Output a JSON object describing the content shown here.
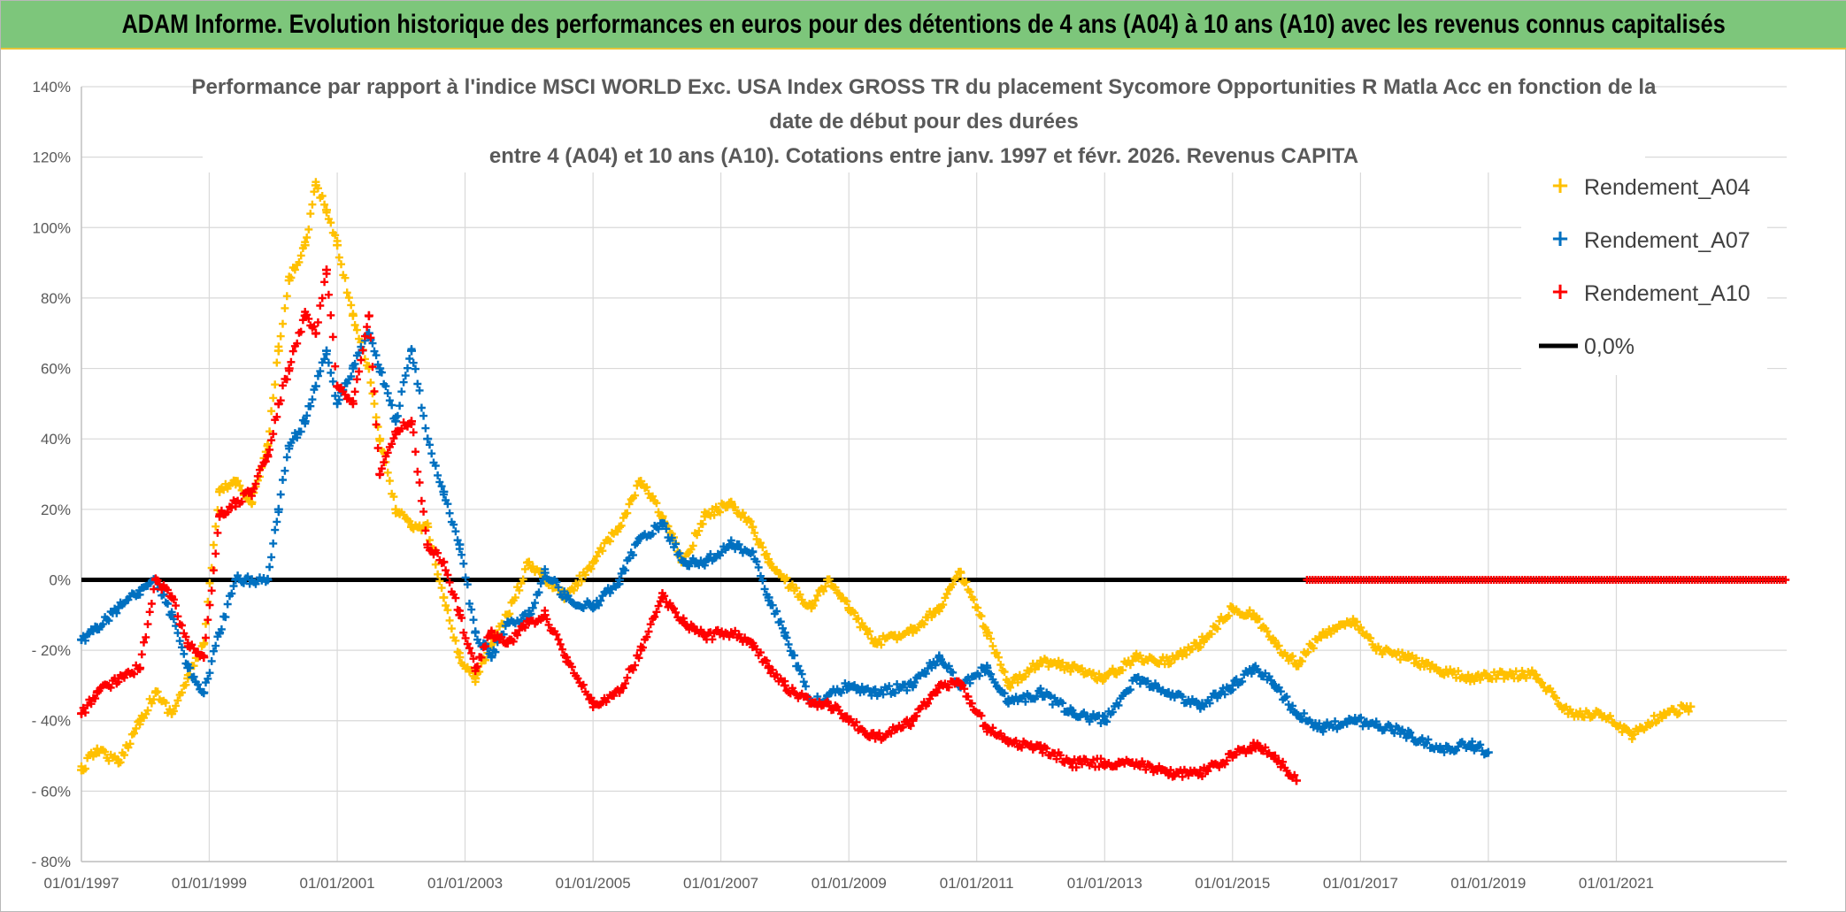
{
  "banner": {
    "title": "ADAM Informe. Evolution historique des performances en euros pour des détentions de 4 ans (A04) à 10 ans (A10) avec les revenus connus capitalisés"
  },
  "chart_data": {
    "type": "scatter",
    "title_lines": [
      "Performance par rapport à l'indice MSCI WORLD Exc. USA Index GROSS TR  du placement Sycomore Opportunities R Matla Acc en fonction de la",
      "date de début pour des durées",
      "entre 4 (A04) et 10 ans (A10). Cotations entre janv. 1997 et févr. 2026. Revenus CAPITA"
    ],
    "x_axis": {
      "type": "date",
      "range": [
        "1997-01-01",
        "2023-09-01"
      ],
      "tick_labels": [
        "01/01/1997",
        "01/01/1999",
        "01/01/2001",
        "01/01/2003",
        "01/01/2005",
        "01/01/2007",
        "01/01/2009",
        "01/01/2011",
        "01/01/2013",
        "01/01/2015",
        "01/01/2017",
        "01/01/2019",
        "01/01/2021"
      ]
    },
    "y_axis": {
      "unit": "percent",
      "range": [
        -80,
        140
      ],
      "tick_labels": [
        "140%",
        "120%",
        "100%",
        "80%",
        "60%",
        "40%",
        "20%",
        "0%",
        "- 20%",
        "- 40%",
        "- 60%",
        "- 80%"
      ]
    },
    "grid": true,
    "legend_position": "top-right",
    "reference_line": {
      "label": "0,0%",
      "value": 0,
      "color": "#000000"
    },
    "series": [
      {
        "name": "Rendement_A04",
        "color": "#ffc000",
        "marker": "+",
        "points": [
          [
            "1997-01-01",
            -54
          ],
          [
            "1997-04-01",
            -48
          ],
          [
            "1997-08-01",
            -52
          ],
          [
            "1997-12-01",
            -40
          ],
          [
            "1998-03-01",
            -32
          ],
          [
            "1998-06-01",
            -38
          ],
          [
            "1998-09-01",
            -28
          ],
          [
            "1998-12-01",
            -18
          ],
          [
            "1999-03-01",
            25
          ],
          [
            "1999-06-01",
            28
          ],
          [
            "1999-09-01",
            22
          ],
          [
            "1999-12-01",
            38
          ],
          [
            "2000-02-01",
            65
          ],
          [
            "2000-04-01",
            85
          ],
          [
            "2000-07-01",
            95
          ],
          [
            "2000-09-01",
            112
          ],
          [
            "2000-11-01",
            105
          ],
          [
            "2001-01-01",
            95
          ],
          [
            "2001-04-01",
            75
          ],
          [
            "2001-07-01",
            60
          ],
          [
            "2001-09-01",
            40
          ],
          [
            "2001-12-01",
            20
          ],
          [
            "2002-03-01",
            15
          ],
          [
            "2002-06-01",
            15
          ],
          [
            "2002-09-01",
            -5
          ],
          [
            "2002-12-01",
            -22
          ],
          [
            "2003-03-01",
            -28
          ],
          [
            "2003-06-01",
            -18
          ],
          [
            "2003-09-01",
            -10
          ],
          [
            "2004-01-01",
            5
          ],
          [
            "2004-04-01",
            0
          ],
          [
            "2004-08-01",
            -5
          ],
          [
            "2005-01-01",
            5
          ],
          [
            "2005-06-01",
            15
          ],
          [
            "2005-10-01",
            28
          ],
          [
            "2006-02-01",
            18
          ],
          [
            "2006-06-01",
            5
          ],
          [
            "2006-10-01",
            18
          ],
          [
            "2007-03-01",
            22
          ],
          [
            "2007-07-01",
            15
          ],
          [
            "2007-10-01",
            5
          ],
          [
            "2008-01-01",
            0
          ],
          [
            "2008-06-01",
            -8
          ],
          [
            "2008-09-01",
            0
          ],
          [
            "2009-01-01",
            -8
          ],
          [
            "2009-06-01",
            -18
          ],
          [
            "2010-01-01",
            -14
          ],
          [
            "2010-06-01",
            -8
          ],
          [
            "2010-10-01",
            2
          ],
          [
            "2011-03-01",
            -15
          ],
          [
            "2011-07-01",
            -30
          ],
          [
            "2012-01-01",
            -23
          ],
          [
            "2012-07-01",
            -25
          ],
          [
            "2013-01-01",
            -28
          ],
          [
            "2013-07-01",
            -22
          ],
          [
            "2014-01-01",
            -23
          ],
          [
            "2014-07-01",
            -18
          ],
          [
            "2015-01-01",
            -8
          ],
          [
            "2015-05-01",
            -10
          ],
          [
            "2015-09-01",
            -18
          ],
          [
            "2016-01-01",
            -24
          ],
          [
            "2016-06-01",
            -15
          ],
          [
            "2016-12-01",
            -12
          ],
          [
            "2017-04-01",
            -20
          ],
          [
            "2017-10-01",
            -22
          ],
          [
            "2018-04-01",
            -26
          ],
          [
            "2018-10-01",
            -28
          ],
          [
            "2019-04-01",
            -27
          ],
          [
            "2019-10-01",
            -27
          ],
          [
            "2020-04-01",
            -38
          ],
          [
            "2020-10-01",
            -38
          ],
          [
            "2021-04-01",
            -44
          ],
          [
            "2021-10-01",
            -38
          ],
          [
            "2022-03-01",
            -36
          ]
        ]
      },
      {
        "name": "Rendement_A07",
        "color": "#0070c0",
        "marker": "+",
        "points": [
          [
            "1997-01-01",
            -17
          ],
          [
            "1997-04-01",
            -14
          ],
          [
            "1997-08-01",
            -8
          ],
          [
            "1997-12-01",
            -3
          ],
          [
            "1998-03-01",
            0
          ],
          [
            "1998-06-01",
            -10
          ],
          [
            "1998-09-01",
            -25
          ],
          [
            "1998-12-01",
            -32
          ],
          [
            "1999-03-01",
            -15
          ],
          [
            "1999-06-01",
            0
          ],
          [
            "1999-09-01",
            0
          ],
          [
            "1999-12-01",
            0
          ],
          [
            "2000-02-01",
            20
          ],
          [
            "2000-04-01",
            38
          ],
          [
            "2000-07-01",
            45
          ],
          [
            "2000-09-01",
            55
          ],
          [
            "2000-11-01",
            65
          ],
          [
            "2001-01-01",
            50
          ],
          [
            "2001-04-01",
            60
          ],
          [
            "2001-07-01",
            70
          ],
          [
            "2001-09-01",
            60
          ],
          [
            "2001-12-01",
            45
          ],
          [
            "2002-03-01",
            65
          ],
          [
            "2002-06-01",
            40
          ],
          [
            "2002-09-01",
            25
          ],
          [
            "2002-12-01",
            10
          ],
          [
            "2003-03-01",
            -15
          ],
          [
            "2003-06-01",
            -22
          ],
          [
            "2003-09-01",
            -12
          ],
          [
            "2004-01-01",
            -10
          ],
          [
            "2004-04-01",
            2
          ],
          [
            "2004-08-01",
            -5
          ],
          [
            "2005-01-01",
            -8
          ],
          [
            "2005-06-01",
            0
          ],
          [
            "2005-10-01",
            12
          ],
          [
            "2006-02-01",
            16
          ],
          [
            "2006-06-01",
            5
          ],
          [
            "2006-10-01",
            5
          ],
          [
            "2007-03-01",
            10
          ],
          [
            "2007-07-01",
            8
          ],
          [
            "2007-10-01",
            -5
          ],
          [
            "2008-01-01",
            -15
          ],
          [
            "2008-06-01",
            -35
          ],
          [
            "2008-09-01",
            -33
          ],
          [
            "2009-01-01",
            -30
          ],
          [
            "2009-06-01",
            -32
          ],
          [
            "2010-01-01",
            -30
          ],
          [
            "2010-06-01",
            -22
          ],
          [
            "2010-10-01",
            -30
          ],
          [
            "2011-03-01",
            -25
          ],
          [
            "2011-07-01",
            -35
          ],
          [
            "2012-01-01",
            -32
          ],
          [
            "2012-07-01",
            -38
          ],
          [
            "2013-01-01",
            -40
          ],
          [
            "2013-07-01",
            -28
          ],
          [
            "2014-01-01",
            -32
          ],
          [
            "2014-07-01",
            -36
          ],
          [
            "2015-01-01",
            -30
          ],
          [
            "2015-05-01",
            -25
          ],
          [
            "2015-09-01",
            -30
          ],
          [
            "2016-01-01",
            -38
          ],
          [
            "2016-06-01",
            -42
          ],
          [
            "2016-12-01",
            -40
          ],
          [
            "2017-04-01",
            -41
          ],
          [
            "2017-10-01",
            -44
          ],
          [
            "2018-04-01",
            -48
          ],
          [
            "2018-10-01",
            -47
          ],
          [
            "2019-01-01",
            -49
          ]
        ]
      },
      {
        "name": "Rendement_A10",
        "color": "#ff0000",
        "marker": "+",
        "points": [
          [
            "1997-01-01",
            -38
          ],
          [
            "1997-04-01",
            -32
          ],
          [
            "1997-08-01",
            -28
          ],
          [
            "1997-12-01",
            -25
          ],
          [
            "1998-03-01",
            0
          ],
          [
            "1998-06-01",
            -5
          ],
          [
            "1998-09-01",
            -18
          ],
          [
            "1998-12-01",
            -22
          ],
          [
            "1999-03-01",
            18
          ],
          [
            "1999-06-01",
            22
          ],
          [
            "1999-09-01",
            25
          ],
          [
            "1999-12-01",
            35
          ],
          [
            "2000-02-01",
            50
          ],
          [
            "2000-04-01",
            60
          ],
          [
            "2000-07-01",
            75
          ],
          [
            "2000-09-01",
            70
          ],
          [
            "2000-11-01",
            88
          ],
          [
            "2001-01-01",
            55
          ],
          [
            "2001-04-01",
            50
          ],
          [
            "2001-07-01",
            75
          ],
          [
            "2001-09-01",
            30
          ],
          [
            "2001-12-01",
            42
          ],
          [
            "2002-03-01",
            45
          ],
          [
            "2002-06-01",
            10
          ],
          [
            "2002-09-01",
            5
          ],
          [
            "2002-12-01",
            -10
          ],
          [
            "2003-03-01",
            -25
          ],
          [
            "2003-06-01",
            -15
          ],
          [
            "2003-09-01",
            -18
          ],
          [
            "2004-01-01",
            -12
          ],
          [
            "2004-04-01",
            -10
          ],
          [
            "2004-08-01",
            -22
          ],
          [
            "2005-01-01",
            -35
          ],
          [
            "2005-06-01",
            -32
          ],
          [
            "2005-10-01",
            -20
          ],
          [
            "2006-02-01",
            -5
          ],
          [
            "2006-06-01",
            -12
          ],
          [
            "2006-10-01",
            -16
          ],
          [
            "2007-03-01",
            -15
          ],
          [
            "2007-07-01",
            -18
          ],
          [
            "2007-10-01",
            -25
          ],
          [
            "2008-01-01",
            -30
          ],
          [
            "2008-06-01",
            -35
          ],
          [
            "2008-09-01",
            -35
          ],
          [
            "2009-01-01",
            -40
          ],
          [
            "2009-06-01",
            -45
          ],
          [
            "2010-01-01",
            -40
          ],
          [
            "2010-06-01",
            -30
          ],
          [
            "2010-10-01",
            -30
          ],
          [
            "2011-03-01",
            -42
          ],
          [
            "2011-07-01",
            -46
          ],
          [
            "2012-01-01",
            -48
          ],
          [
            "2012-07-01",
            -52
          ],
          [
            "2013-01-01",
            -52
          ],
          [
            "2013-07-01",
            -52
          ],
          [
            "2014-01-01",
            -55
          ],
          [
            "2014-07-01",
            -55
          ],
          [
            "2015-01-01",
            -50
          ],
          [
            "2015-05-01",
            -47
          ],
          [
            "2015-09-01",
            -50
          ],
          [
            "2016-01-01",
            -57
          ]
        ],
        "zero_from": [
          "2016-03-01",
          "2023-09-01"
        ]
      }
    ]
  }
}
